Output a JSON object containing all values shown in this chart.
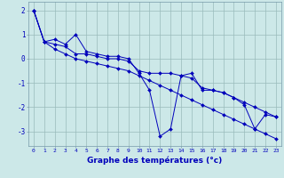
{
  "xlabel": "Graphe des températures (°c)",
  "bg_color": "#cce8e8",
  "line_color": "#0000bb",
  "grid_color": "#99bbbb",
  "x_ticks": [
    0,
    1,
    2,
    3,
    4,
    5,
    6,
    7,
    8,
    9,
    10,
    11,
    12,
    13,
    14,
    15,
    16,
    17,
    18,
    19,
    20,
    21,
    22,
    23
  ],
  "ylim": [
    -3.6,
    2.35
  ],
  "xlim": [
    -0.5,
    23.5
  ],
  "yticks": [
    -3,
    -2,
    -1,
    0,
    1,
    2
  ],
  "series": [
    [
      2.0,
      0.7,
      0.8,
      0.6,
      1.0,
      0.3,
      0.2,
      0.1,
      0.1,
      0.0,
      -0.6,
      -1.3,
      -3.2,
      -2.9,
      -0.7,
      -0.6,
      -1.3,
      -1.3,
      -1.4,
      -1.6,
      -1.9,
      -2.9,
      -2.3,
      -2.4
    ],
    [
      2.0,
      0.7,
      0.6,
      0.5,
      0.2,
      0.2,
      0.1,
      0.0,
      0.0,
      -0.1,
      -0.5,
      -0.6,
      -0.6,
      -0.6,
      -0.7,
      -0.8,
      -1.2,
      -1.3,
      -1.4,
      -1.6,
      -1.8,
      -2.0,
      -2.2,
      -2.4
    ],
    [
      2.0,
      0.7,
      0.4,
      0.2,
      0.0,
      -0.1,
      -0.2,
      -0.3,
      -0.4,
      -0.5,
      -0.7,
      -0.9,
      -1.1,
      -1.3,
      -1.5,
      -1.7,
      -1.9,
      -2.1,
      -2.3,
      -2.5,
      -2.7,
      -2.9,
      -3.1,
      -3.3
    ]
  ]
}
